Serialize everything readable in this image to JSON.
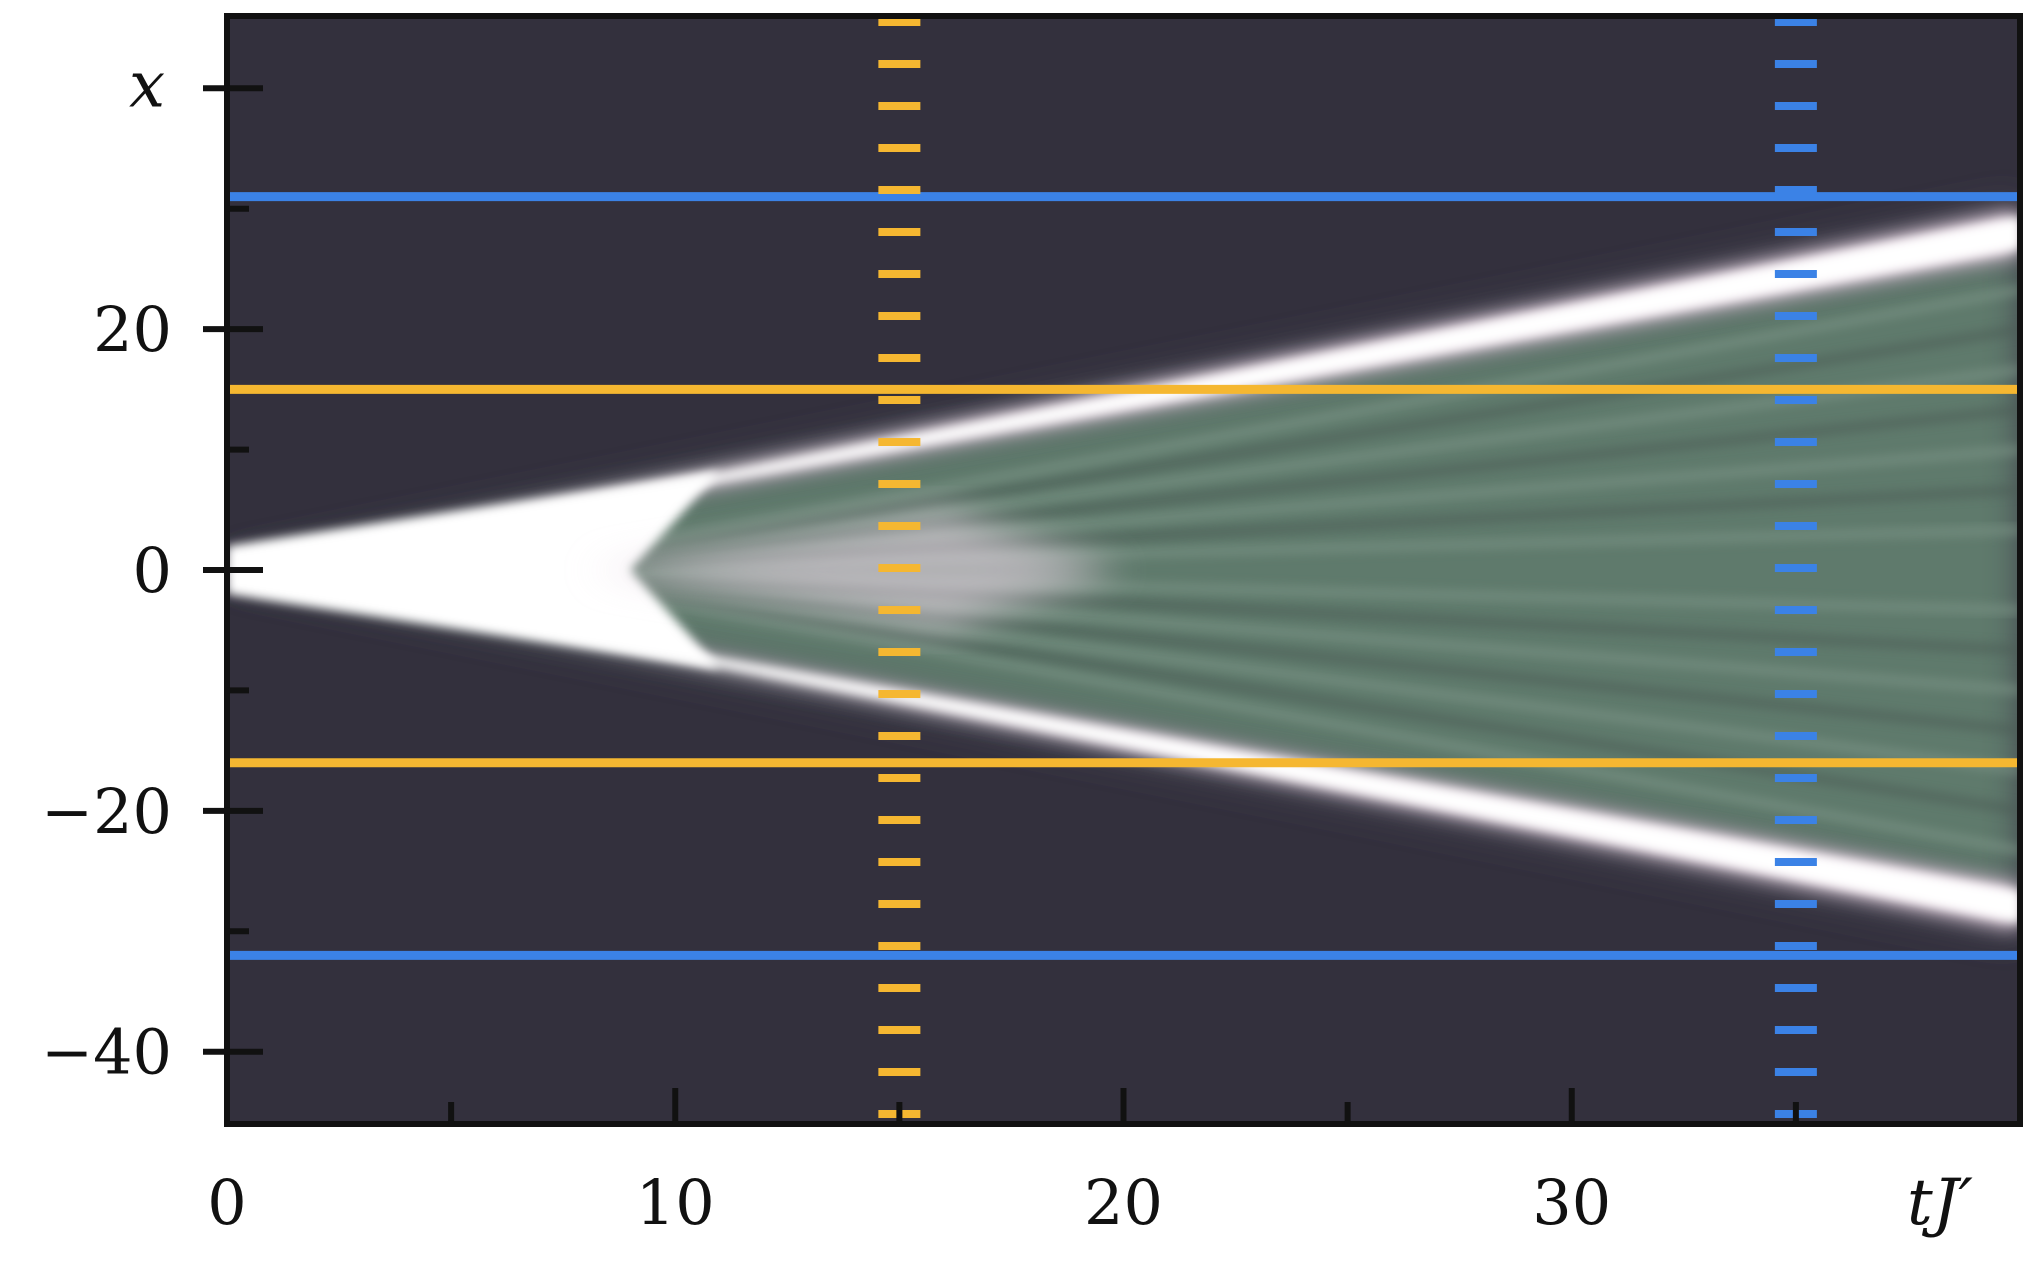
{
  "chart_data": {
    "type": "heatmap",
    "xlabel": "tJ′",
    "ylabel": "x",
    "xlim": [
      0,
      40
    ],
    "ylim": [
      -46,
      46
    ],
    "x_ticks_major": [
      0,
      10,
      20,
      30
    ],
    "x_tick_labels": [
      "0",
      "10",
      "20",
      "30"
    ],
    "x_ticks_minor": [
      5,
      15,
      25,
      35
    ],
    "y_ticks_major": [
      -40,
      -20,
      0,
      20
    ],
    "y_tick_labels": [
      "−40",
      "−20",
      "0",
      "20"
    ],
    "y_ticks_minor": [
      -30,
      -10,
      10,
      30,
      40
    ],
    "light_cone": {
      "origin": [
        0,
        0
      ],
      "front_velocity_per_tJ": 0.7,
      "description_values": "bright spreading fronts from x=0 at t=0, reaching about ±27 at tJ′=40"
    },
    "horizontal_lines": [
      {
        "y": 31,
        "color": "#3b82e6",
        "style": "solid"
      },
      {
        "y": 15,
        "color": "#f5b731",
        "style": "solid"
      },
      {
        "y": -16,
        "color": "#f5b731",
        "style": "solid"
      },
      {
        "y": -32,
        "color": "#3b82e6",
        "style": "solid"
      }
    ],
    "vertical_lines": [
      {
        "x": 15,
        "color": "#f5b731",
        "style": "dashed"
      },
      {
        "x": 35,
        "color": "#3b82e6",
        "style": "dashed"
      }
    ],
    "colors": {
      "background": "#33303d",
      "front": "#ffffff",
      "front_tint": "#f0dcea",
      "interior": "#5f7a6c"
    }
  }
}
